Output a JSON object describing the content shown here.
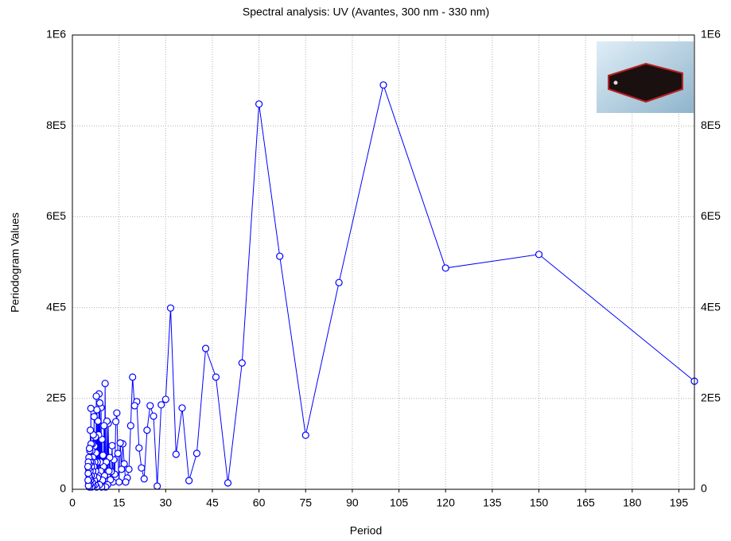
{
  "chart_data": {
    "type": "line",
    "title": "Spectral analysis: UV (Avantes, 300 nm - 330 nm)",
    "x_label": "Period",
    "y_label": "Periodogram Values",
    "xlim": [
      0,
      200
    ],
    "xticks": [
      0,
      15,
      30,
      45,
      60,
      75,
      90,
      105,
      120,
      135,
      150,
      165,
      180,
      195
    ],
    "ylim": [
      0,
      1000000
    ],
    "yticks": [
      0,
      {
        "value": 200000,
        "label": "2E5"
      },
      {
        "value": 400000,
        "label": "4E5"
      },
      {
        "value": 600000,
        "label": "6E5"
      },
      {
        "value": 800000,
        "label": "8E5"
      },
      {
        "value": 1000000,
        "label": "1E6"
      }
    ],
    "grid": true,
    "color": "#0000ff",
    "x": [
      200,
      150,
      120,
      100,
      85.71,
      75,
      66.67,
      60,
      54.55,
      50,
      46.15,
      42.86,
      40,
      37.5,
      35.29,
      33.33,
      31.58,
      30,
      28.57,
      27.27,
      26.09,
      25,
      24,
      23.08,
      22.22,
      21.43,
      20.69,
      20,
      19.35,
      18.75,
      18.18,
      17.65,
      17.14,
      16.67,
      16.22,
      15.79,
      15.38,
      15,
      14.63,
      14.29,
      13.95,
      13.64,
      13.33,
      13.04,
      12.77,
      12.5,
      12.24,
      12,
      11.76,
      11.54,
      11.32,
      11.11,
      10.91,
      10.71,
      10.53,
      10.34,
      10.17,
      10,
      9.84,
      9.68,
      9.52,
      9.38,
      9.23,
      9.09,
      8.96,
      8.82,
      8.7,
      8.57,
      8.45,
      8.33,
      8.22,
      8.11,
      8,
      7.89,
      7.79,
      7.69,
      7.59,
      7.5,
      7.41,
      7.32,
      7.23,
      7.14,
      7.06,
      6.98,
      6.9,
      6.82,
      6.74,
      6.67,
      6.59,
      6.52,
      6.45,
      6.38,
      6.32,
      6.25,
      6.19,
      6.12,
      6.06,
      6,
      5.94,
      5.88,
      5.83,
      5.77,
      5.71,
      5.66,
      5.61,
      5.56,
      5.5,
      5.45,
      5.41,
      5.36,
      5.31,
      5.26,
      5.22,
      5.17,
      5.13,
      5.08,
      5.04,
      5
    ],
    "values": [
      238000,
      517000,
      487000,
      890000,
      455000,
      119000,
      513000,
      848000,
      278000,
      14000,
      247000,
      310000,
      79000,
      19000,
      179000,
      77000,
      399000,
      198000,
      186000,
      7000,
      161000,
      184000,
      130000,
      23000,
      47000,
      91000,
      193000,
      184000,
      247000,
      140000,
      44000,
      25000,
      16000,
      56000,
      100000,
      44000,
      102000,
      16000,
      79000,
      168000,
      149000,
      33000,
      65000,
      16000,
      96000,
      39000,
      21000,
      70000,
      40000,
      145000,
      10000,
      150000,
      60000,
      5000,
      233000,
      30000,
      140000,
      50000,
      75000,
      20000,
      110000,
      5000,
      180000,
      40000,
      60000,
      190000,
      10000,
      210000,
      120000,
      30000,
      150000,
      25000,
      60000,
      175000,
      5000,
      205000,
      80000,
      40000,
      115000,
      10000,
      60000,
      95000,
      20000,
      160000,
      50000,
      30000,
      120000,
      8000,
      70000,
      40000,
      100000,
      15000,
      60000,
      85000,
      5000,
      50000,
      30000,
      100000,
      178000,
      20000,
      60000,
      130000,
      10000,
      40000,
      85000,
      25000,
      90000,
      5000,
      55000,
      30000,
      70000,
      15000,
      45000,
      8000,
      60000,
      35000,
      20000,
      50000
    ]
  }
}
